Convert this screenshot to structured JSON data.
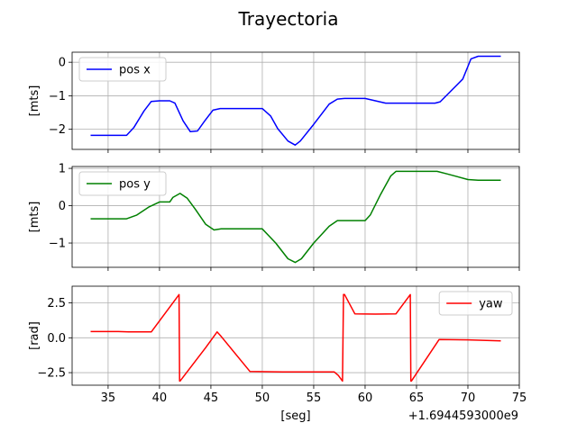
{
  "title": "Trayectoria",
  "offset_text": "+1.6944593000e9",
  "chart_data": [
    {
      "type": "line",
      "ylabel": "[mts]",
      "xlabel": "",
      "xlim": [
        31.5,
        75.0
      ],
      "ylim": [
        -2.6,
        0.3
      ],
      "yticks": [
        0,
        -1,
        -2
      ],
      "ytick_labels": [
        "0",
        "−1",
        "−2"
      ],
      "xticks": [
        35,
        40,
        45,
        50,
        55,
        60,
        65,
        70,
        75
      ],
      "xtick_labels": [],
      "grid": true,
      "legend_position": "upper left",
      "series": [
        {
          "name": "pos x",
          "color": "#0000ff",
          "x": [
            33.3,
            36.8,
            37.5,
            38.5,
            39.2,
            40.0,
            41.0,
            41.5,
            42.3,
            43.0,
            43.7,
            44.4,
            45.2,
            45.9,
            47.0,
            50.0,
            50.8,
            51.5,
            52.5,
            53.2,
            53.7,
            55.0,
            56.5,
            57.3,
            58.0,
            60.0,
            62.0,
            66.8,
            67.3,
            69.5,
            70.3,
            71.0,
            73.2
          ],
          "y": [
            -2.18,
            -2.18,
            -1.95,
            -1.45,
            -1.17,
            -1.15,
            -1.15,
            -1.22,
            -1.75,
            -2.07,
            -2.05,
            -1.75,
            -1.43,
            -1.38,
            -1.38,
            -1.38,
            -1.6,
            -1.98,
            -2.35,
            -2.47,
            -2.35,
            -1.85,
            -1.25,
            -1.1,
            -1.08,
            -1.08,
            -1.22,
            -1.22,
            -1.18,
            -0.5,
            0.1,
            0.18,
            0.18
          ]
        }
      ]
    },
    {
      "type": "line",
      "ylabel": "[mts]",
      "xlabel": "",
      "xlim": [
        31.5,
        75.0
      ],
      "ylim": [
        -1.65,
        1.05
      ],
      "yticks": [
        1,
        0,
        -1
      ],
      "ytick_labels": [
        "1",
        "0",
        "−1"
      ],
      "xticks": [
        35,
        40,
        45,
        50,
        55,
        60,
        65,
        70,
        75
      ],
      "xtick_labels": [],
      "grid": true,
      "legend_position": "upper left",
      "series": [
        {
          "name": "pos y",
          "color": "#008000",
          "x": [
            33.3,
            36.8,
            37.8,
            39.0,
            40.0,
            41.0,
            41.3,
            42.0,
            42.7,
            43.5,
            44.5,
            45.3,
            46.0,
            47.0,
            50.0,
            51.3,
            52.5,
            53.2,
            53.8,
            55.0,
            56.5,
            57.3,
            58.0,
            60.0,
            60.5,
            61.5,
            62.5,
            63.0,
            67.0,
            68.0,
            70.0,
            71.0,
            73.2
          ],
          "y": [
            -0.35,
            -0.35,
            -0.25,
            -0.03,
            0.1,
            0.1,
            0.22,
            0.33,
            0.2,
            -0.1,
            -0.5,
            -0.65,
            -0.62,
            -0.62,
            -0.62,
            -1.0,
            -1.42,
            -1.52,
            -1.42,
            -1.0,
            -0.55,
            -0.4,
            -0.4,
            -0.4,
            -0.25,
            0.3,
            0.8,
            0.92,
            0.92,
            0.85,
            0.7,
            0.68,
            0.68
          ]
        }
      ]
    },
    {
      "type": "line",
      "ylabel": "[rad]",
      "xlabel": "[seg]",
      "xlim": [
        31.5,
        75.0
      ],
      "ylim": [
        -3.4,
        3.7
      ],
      "yticks": [
        2.5,
        0.0,
        -2.5
      ],
      "ytick_labels": [
        "2.5",
        "0.0",
        "−2.5"
      ],
      "xticks": [
        35,
        40,
        45,
        50,
        55,
        60,
        65,
        70,
        75
      ],
      "xtick_labels": [
        "35",
        "40",
        "45",
        "50",
        "55",
        "60",
        "65",
        "70",
        "75"
      ],
      "grid": true,
      "legend_position": "upper right",
      "series": [
        {
          "name": "yaw",
          "color": "#ff0000",
          "x": [
            33.3,
            36.0,
            37.0,
            39.2,
            41.9,
            41.95,
            42.0,
            44.5,
            45.6,
            46.0,
            48.8,
            52.0,
            57.0,
            57.4,
            57.8,
            57.9,
            58.0,
            59.0,
            61.0,
            63.0,
            64.4,
            64.45,
            64.5,
            67.2,
            70.0,
            73.2
          ],
          "y": [
            0.45,
            0.45,
            0.42,
            0.42,
            3.1,
            -3.1,
            -3.1,
            -0.7,
            0.42,
            0.1,
            -2.42,
            -2.45,
            -2.45,
            -2.7,
            -3.1,
            3.1,
            3.1,
            1.72,
            1.7,
            1.72,
            3.1,
            -3.1,
            -3.1,
            -0.12,
            -0.15,
            -0.22
          ]
        }
      ]
    }
  ]
}
